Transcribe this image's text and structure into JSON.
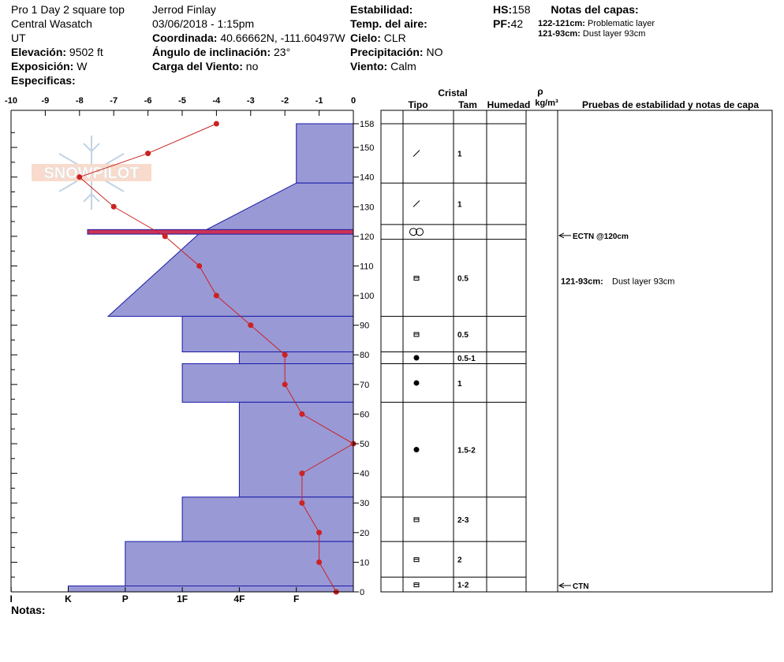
{
  "header": {
    "col1": {
      "title": "Pro 1 Day 2 square top",
      "region": "Central Wasatch",
      "state": "UT",
      "elevation_label": "Elevación:",
      "elevation_value": "9502 ft",
      "aspect_label": "Exposición:",
      "aspect_value": "W",
      "specifics_label": "Especificas:"
    },
    "col2": {
      "observer": "Jerrod Finlay",
      "datetime": "03/06/2018 - 1:15pm",
      "coord_label": "Coordinada:",
      "coord_value": "40.66662N, -111.60497W",
      "slope_label": "Ángulo de inclinación:",
      "slope_value": "23°",
      "wind_load_label": "Carga del Viento:",
      "wind_load_value": "no"
    },
    "col3": {
      "stability_label": "Estabilidad:",
      "air_temp_label": "Temp. del aire:",
      "sky_label": "Cielo:",
      "sky_value": "CLR",
      "precip_label": "Precipitación:",
      "precip_value": "NO",
      "wind_label": "Viento:",
      "wind_value": "Calm"
    },
    "col4": {
      "hs_label": "HS:",
      "hs_value": "158",
      "pf_label": "PF:",
      "pf_value": "42",
      "layer_notes_label": "Notas del capas:",
      "notes": [
        {
          "range": "122-121cm:",
          "text": "Problematic layer"
        },
        {
          "range": "121-93cm:",
          "text": "Dust layer 93cm"
        }
      ]
    }
  },
  "footer": {
    "notes_label": "Notas:"
  },
  "watermark": {
    "text": "SNOWPILOT"
  },
  "colors": {
    "hardness_fill": "#9999d6",
    "hardness_stroke": "#1a1aa8",
    "temp_line": "#cc2222",
    "problem_band": "#cc3355"
  },
  "table_headers": {
    "crystal": "Cristal",
    "type": "Tipo",
    "size": "Tam",
    "moisture": "Humedad",
    "rho": "ρ",
    "density_units": "kg/m³",
    "tests": "Pruebas de estabilidad y notas de capa"
  },
  "stability_notes": [
    {
      "text": "ECTN @120cm",
      "depth": 120
    },
    {
      "text": "CTN",
      "depth": 0
    }
  ],
  "layer_note_right": {
    "range": "121-93cm:",
    "text": "Dust layer 93cm",
    "depth": 105
  },
  "chart_data": {
    "type": "line",
    "temperature_axis": {
      "ticks": [
        -10,
        -9,
        -8,
        -7,
        -6,
        -5,
        -4,
        -3,
        -2,
        -1,
        0
      ],
      "tick_labels": [
        "-10",
        "-9",
        "-8",
        "-7",
        "-6",
        "-5",
        "-4",
        "-3",
        "-2",
        "-1",
        "0"
      ],
      "range": [
        -10,
        0
      ]
    },
    "height_axis": {
      "ticks": [
        0,
        10,
        20,
        30,
        40,
        50,
        60,
        70,
        80,
        90,
        100,
        110,
        120,
        130,
        140,
        150,
        158
      ],
      "tick_labels": [
        "0",
        "10",
        "20",
        "30",
        "40",
        "50",
        "60",
        "70",
        "80",
        "90",
        "100",
        "110",
        "120",
        "130",
        "140",
        "150",
        "158"
      ],
      "range": [
        0,
        158
      ]
    },
    "hardness_axis": {
      "labels": [
        "I",
        "K",
        "P",
        "1F",
        "4F",
        "F"
      ],
      "values": [
        6,
        5,
        4,
        3,
        2,
        1
      ]
    },
    "temperature_profile": {
      "points": [
        {
          "height": 158,
          "temp": -4
        },
        {
          "height": 148,
          "temp": -6
        },
        {
          "height": 140,
          "temp": -8
        },
        {
          "height": 130,
          "temp": -7
        },
        {
          "height": 120,
          "temp": -5.5
        },
        {
          "height": 110,
          "temp": -4.5
        },
        {
          "height": 100,
          "temp": -4
        },
        {
          "height": 90,
          "temp": -3
        },
        {
          "height": 80,
          "temp": -2
        },
        {
          "height": 70,
          "temp": -2
        },
        {
          "height": 60,
          "temp": -1.5
        },
        {
          "height": 50,
          "temp": 0
        },
        {
          "height": 40,
          "temp": -1.5
        },
        {
          "height": 30,
          "temp": -1.5
        },
        {
          "height": 20,
          "temp": -1
        },
        {
          "height": 10,
          "temp": -1
        },
        {
          "height": 0,
          "temp": -0.5
        }
      ]
    },
    "hardness_profile": [
      {
        "top": 158,
        "bottom": 138,
        "hardness": 1,
        "hardness_bottom": 1
      },
      {
        "top": 138,
        "bottom": 121,
        "hardness": 1,
        "hardness_bottom": 2.7
      },
      {
        "top": 121,
        "bottom": 93,
        "hardness": 2.7,
        "hardness_bottom": 4.3
      },
      {
        "top": 93,
        "bottom": 81,
        "hardness": 3,
        "hardness_bottom": 3
      },
      {
        "top": 81,
        "bottom": 77,
        "hardness": 2,
        "hardness_bottom": 2
      },
      {
        "top": 77,
        "bottom": 64,
        "hardness": 3,
        "hardness_bottom": 3
      },
      {
        "top": 64,
        "bottom": 32,
        "hardness": 2,
        "hardness_bottom": 2
      },
      {
        "top": 32,
        "bottom": 17,
        "hardness": 3,
        "hardness_bottom": 3
      },
      {
        "top": 17,
        "bottom": 2,
        "hardness": 4,
        "hardness_bottom": 4
      },
      {
        "top": 2,
        "bottom": 0,
        "hardness": 5,
        "hardness_bottom": 5
      }
    ],
    "problem_layer": {
      "top": 122,
      "bottom": 121
    },
    "layers": [
      {
        "top": 158,
        "bottom": 138,
        "type": "decomposing",
        "size": "1"
      },
      {
        "top": 138,
        "bottom": 124,
        "type": "decomposing",
        "size": "1"
      },
      {
        "top": 124,
        "bottom": 119,
        "type": "melt-freeze",
        "size": ""
      },
      {
        "top": 119,
        "bottom": 93,
        "type": "faceted",
        "size": "0.5"
      },
      {
        "top": 93,
        "bottom": 81,
        "type": "faceted",
        "size": "0.5"
      },
      {
        "top": 81,
        "bottom": 77,
        "type": "rounded",
        "size": "0.5-1"
      },
      {
        "top": 77,
        "bottom": 64,
        "type": "rounded",
        "size": "1"
      },
      {
        "top": 64,
        "bottom": 32,
        "type": "rounded",
        "size": "1.5-2"
      },
      {
        "top": 32,
        "bottom": 17,
        "type": "faceted",
        "size": "2-3"
      },
      {
        "top": 17,
        "bottom": 5,
        "type": "faceted",
        "size": "2"
      },
      {
        "top": 5,
        "bottom": 0,
        "type": "faceted",
        "size": "1-2"
      }
    ]
  }
}
